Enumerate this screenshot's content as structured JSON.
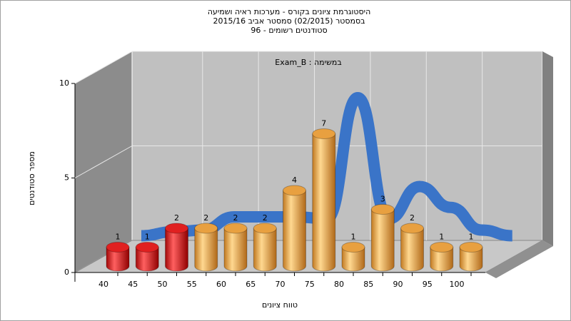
{
  "chart_data": {
    "type": "bar",
    "title": "היסטוגרמת ציונים בקורס - מערכות ראיה ושמיעה",
    "subtitle": "בסמסטר (02/2015) סמסטר אביב 2015/16",
    "subtitle2": "סטודנטים רשומים - 96",
    "annotation": "במשימה : Exam_B",
    "x_label": "טווח ציונים",
    "y_label": "מספר סטודנטים",
    "categories": [
      "40",
      "45",
      "50",
      "55",
      "60",
      "65",
      "70",
      "75",
      "80",
      "85",
      "90",
      "95",
      "100"
    ],
    "values": [
      1,
      1,
      2,
      2,
      2,
      2,
      4,
      7,
      1,
      3,
      2,
      1,
      1
    ],
    "colors": [
      "#e02020",
      "#e02020",
      "#e02020",
      "#e8a040",
      "#e8a040",
      "#e8a040",
      "#e8a040",
      "#e8a040",
      "#e8a040",
      "#e8a040",
      "#e8a040",
      "#e8a040",
      "#e8a040"
    ],
    "curve": {
      "color": "#3a74c8",
      "values": [
        0.7,
        0.9,
        1.0,
        1.7,
        1.7,
        1.7,
        1.6,
        8.0,
        1.6,
        3.3,
        2.2,
        1.0,
        0.7
      ]
    },
    "ylim": [
      0,
      10
    ],
    "yticks": [
      0,
      5,
      10
    ],
    "grid": true
  }
}
